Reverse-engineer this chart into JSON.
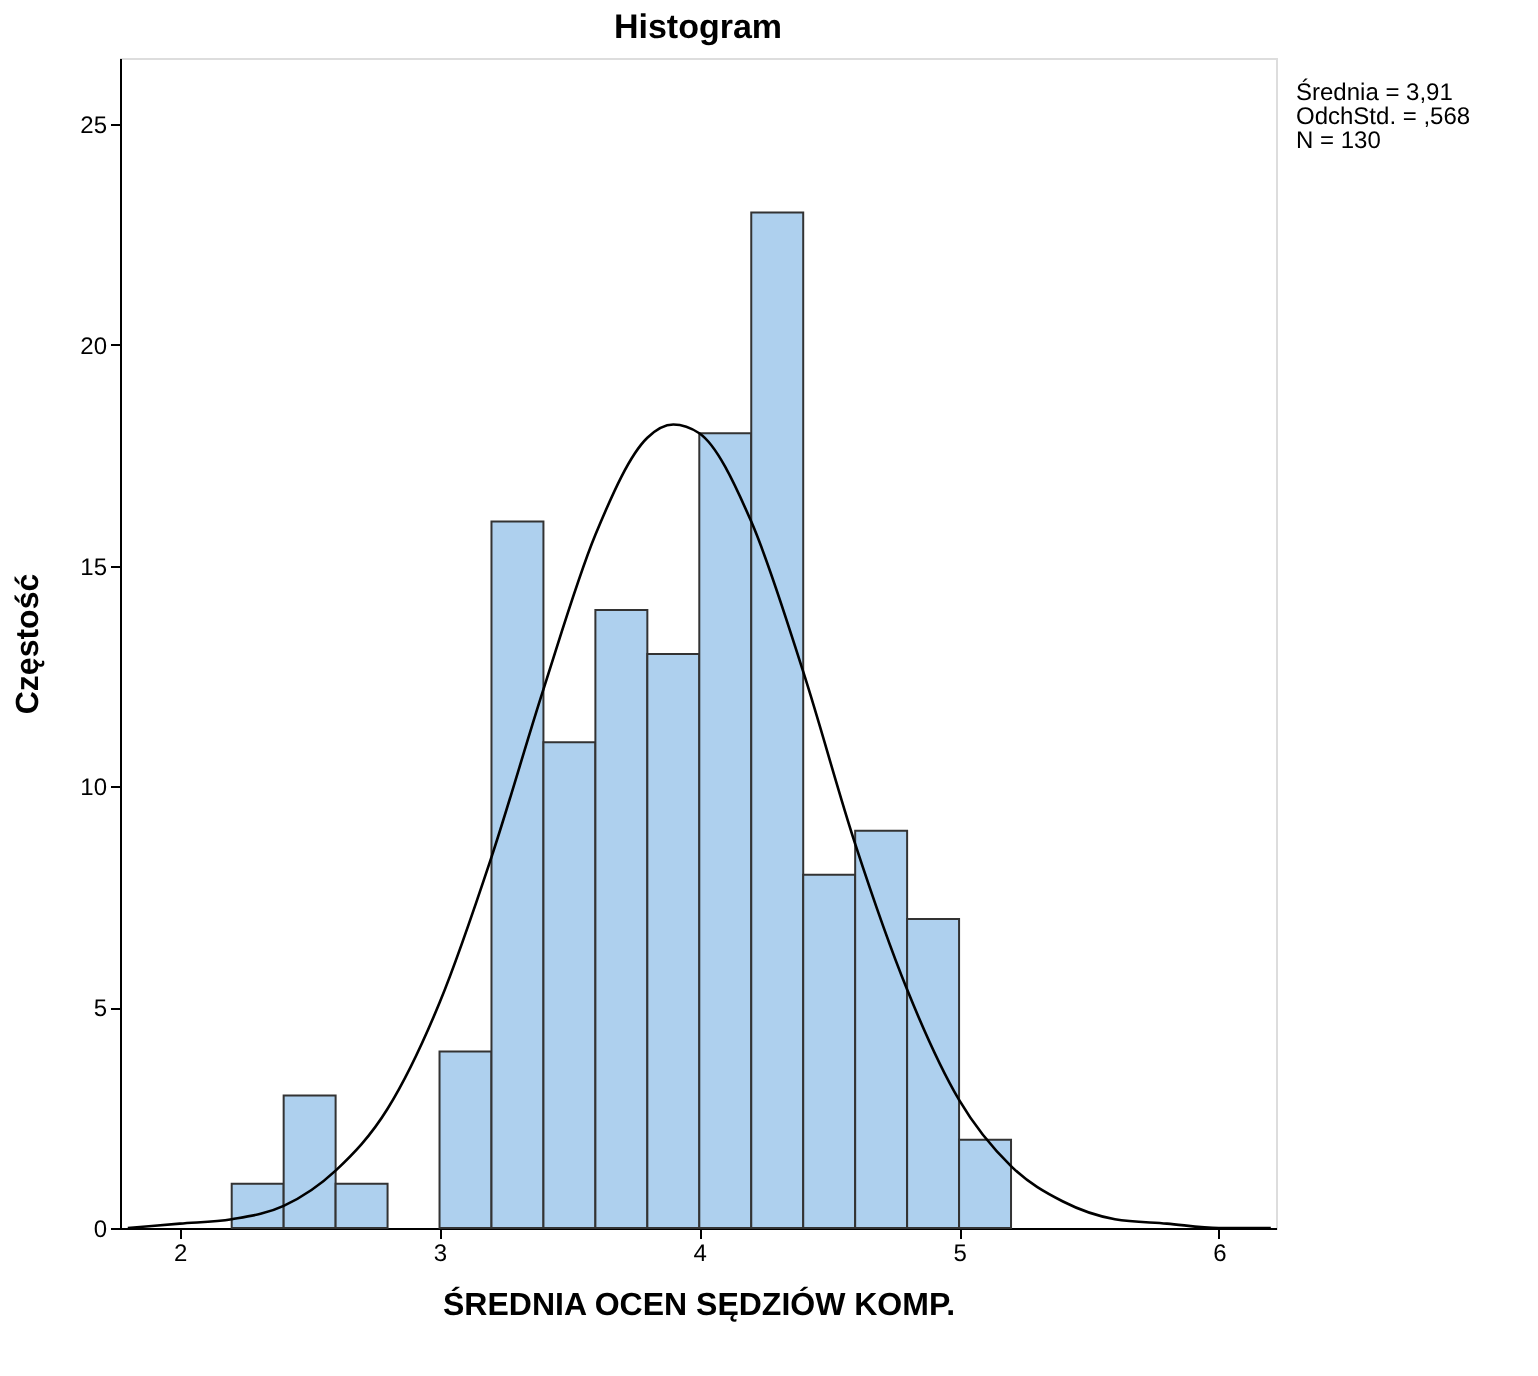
{
  "chart_data": {
    "type": "histogram",
    "title": "Histogram",
    "xlabel": "ŚREDNIA OCEN SĘDZIÓW KOMP.",
    "ylabel": "Częstość",
    "bins": [
      2.2,
      2.4,
      2.6,
      2.8,
      3.0,
      3.2,
      3.4,
      3.6,
      3.8,
      4.0,
      4.2,
      4.4,
      4.6,
      4.8,
      5.0,
      5.2
    ],
    "values": [
      1,
      3,
      1,
      0,
      4,
      16,
      11,
      14,
      13,
      18,
      23,
      8,
      9,
      7,
      2
    ],
    "color": "#aed0ee",
    "series": [
      {
        "type": "line",
        "color": "#000000",
        "x": [
          1.8,
          2.0,
          2.2,
          2.4,
          2.6,
          2.8,
          3.0,
          3.2,
          3.4,
          3.6,
          3.8,
          3.9,
          4.0,
          4.2,
          4.4,
          4.6,
          4.8,
          5.0,
          5.2,
          5.4,
          5.6,
          5.8,
          6.0,
          6.2
        ],
        "values": [
          0.0,
          0.1,
          0.2,
          0.5,
          1.3,
          2.7,
          5.1,
          8.4,
          12.2,
          15.7,
          17.9,
          18.2,
          18.0,
          16.0,
          12.6,
          8.7,
          5.4,
          2.9,
          1.4,
          0.6,
          0.2,
          0.1,
          0.0,
          0.0
        ]
      }
    ],
    "xlim": [
      1.77,
      6.22
    ],
    "ylim": [
      0,
      26.5
    ],
    "xticks": [
      2,
      3,
      4,
      5,
      6
    ],
    "yticks": [
      0,
      5,
      10,
      15,
      20,
      25
    ],
    "grid": false,
    "annotations": [
      "Średnia = 3,91",
      "OdchStd. = ,568",
      "N = 130"
    ]
  }
}
